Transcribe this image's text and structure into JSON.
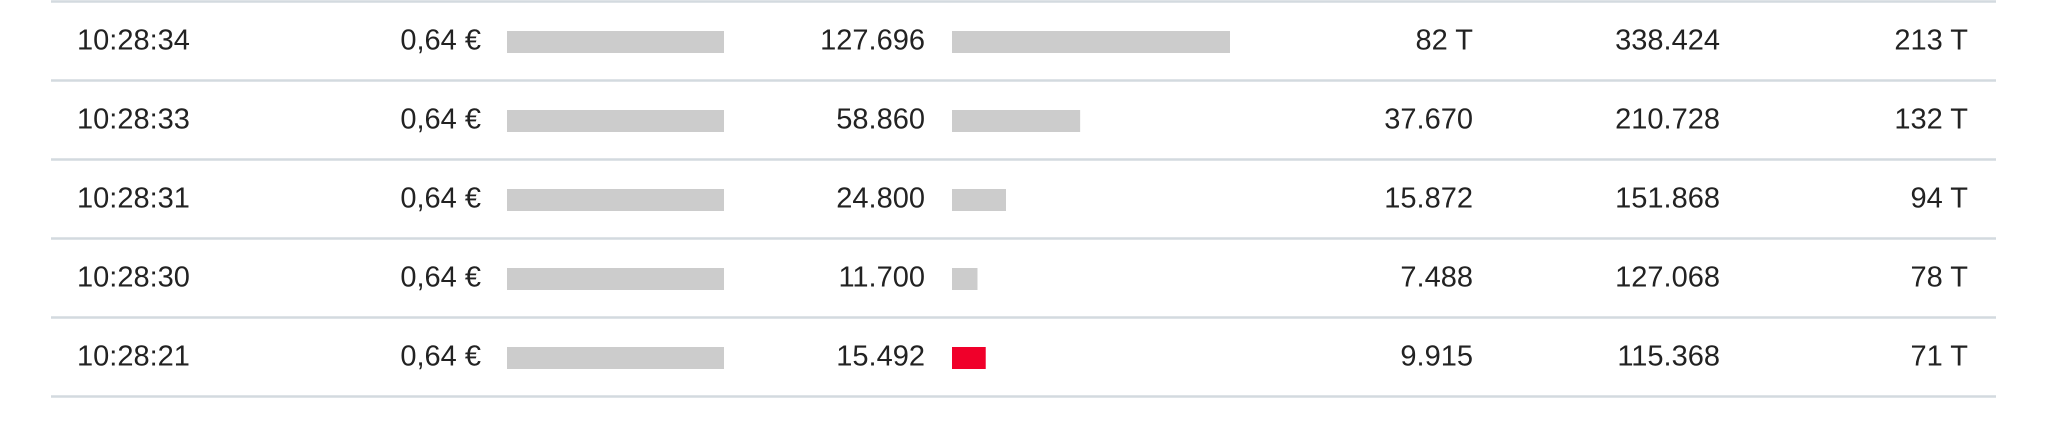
{
  "table": {
    "bar_color": "#cccccc",
    "rows": [
      {
        "time": "10:28:34",
        "price": {
          "value": 0.64,
          "label": "0,64 €"
        },
        "volume": {
          "value": 127696,
          "label": "127.696"
        },
        "col4": "82 T",
        "col5": "338.424",
        "col6": "213 T",
        "volume_color": "#cccccc"
      },
      {
        "time": "10:28:33",
        "price": {
          "value": 0.64,
          "label": "0,64 €"
        },
        "volume": {
          "value": 58860,
          "label": "58.860"
        },
        "col4": "37.670",
        "col5": "210.728",
        "col6": "132 T",
        "volume_color": "#cccccc"
      },
      {
        "time": "10:28:31",
        "price": {
          "value": 0.64,
          "label": "0,64 €"
        },
        "volume": {
          "value": 24800,
          "label": "24.800"
        },
        "col4": "15.872",
        "col5": "151.868",
        "col6": "94 T",
        "volume_color": "#cccccc"
      },
      {
        "time": "10:28:30",
        "price": {
          "value": 0.64,
          "label": "0,64 €"
        },
        "volume": {
          "value": 11700,
          "label": "11.700"
        },
        "col4": "7.488",
        "col5": "127.068",
        "col6": "78 T",
        "volume_color": "#cccccc"
      },
      {
        "time": "10:28:21",
        "price": {
          "value": 0.64,
          "label": "0,64 €"
        },
        "volume": {
          "value": 15492,
          "label": "15.492"
        },
        "col4": "9.915",
        "col5": "115.368",
        "col6": "71 T",
        "volume_color": "#f0002a"
      }
    ]
  }
}
